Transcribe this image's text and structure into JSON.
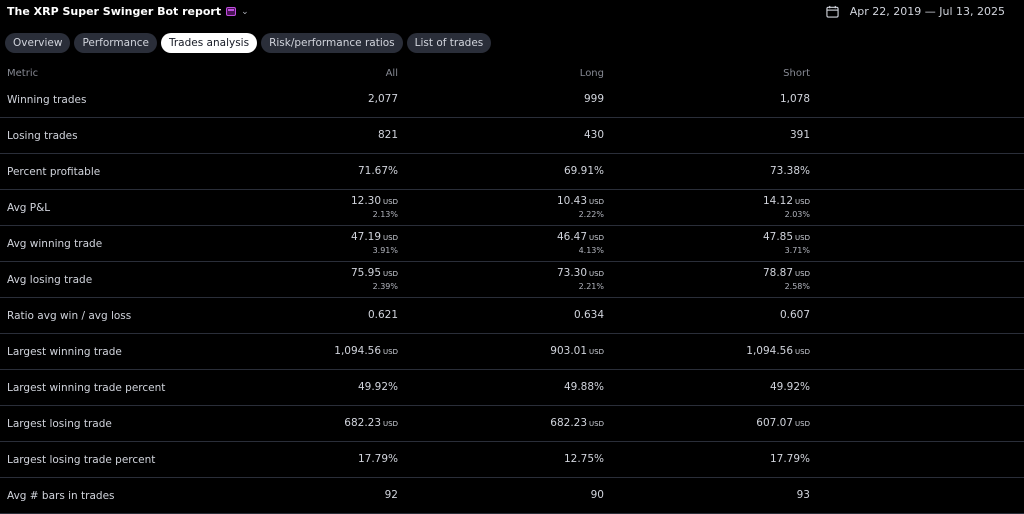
{
  "header": {
    "title": "The XRP Super Swinger Bot report",
    "date_range": "Apr 22, 2019 — Jul 13, 2025"
  },
  "tabs": [
    {
      "label": "Overview"
    },
    {
      "label": "Performance"
    },
    {
      "label": "Trades analysis",
      "active": true
    },
    {
      "label": "Risk/performance ratios"
    },
    {
      "label": "List of trades"
    }
  ],
  "table": {
    "columns": {
      "metric": "Metric",
      "all": "All",
      "long": "Long",
      "short": "Short"
    },
    "currency": "USD",
    "rows": [
      {
        "metric": "Winning trades",
        "all": "2,077",
        "long": "999",
        "short": "1,078"
      },
      {
        "metric": "Losing trades",
        "all": "821",
        "long": "430",
        "short": "391"
      },
      {
        "metric": "Percent profitable",
        "all": "71.67%",
        "long": "69.91%",
        "short": "73.38%"
      },
      {
        "metric": "Avg P&L",
        "all": "12.30",
        "all_cur": "USD",
        "all_sub": "2.13%",
        "long": "10.43",
        "long_cur": "USD",
        "long_sub": "2.22%",
        "short": "14.12",
        "short_cur": "USD",
        "short_sub": "2.03%"
      },
      {
        "metric": "Avg winning trade",
        "all": "47.19",
        "all_cur": "USD",
        "all_sub": "3.91%",
        "long": "46.47",
        "long_cur": "USD",
        "long_sub": "4.13%",
        "short": "47.85",
        "short_cur": "USD",
        "short_sub": "3.71%"
      },
      {
        "metric": "Avg losing trade",
        "all": "75.95",
        "all_cur": "USD",
        "all_sub": "2.39%",
        "long": "73.30",
        "long_cur": "USD",
        "long_sub": "2.21%",
        "short": "78.87",
        "short_cur": "USD",
        "short_sub": "2.58%"
      },
      {
        "metric": "Ratio avg win / avg loss",
        "all": "0.621",
        "long": "0.634",
        "short": "0.607"
      },
      {
        "metric": "Largest winning trade",
        "all": "1,094.56",
        "all_cur": "USD",
        "long": "903.01",
        "long_cur": "USD",
        "short": "1,094.56",
        "short_cur": "USD"
      },
      {
        "metric": "Largest winning trade percent",
        "all": "49.92%",
        "long": "49.88%",
        "short": "49.92%"
      },
      {
        "metric": "Largest losing trade",
        "all": "682.23",
        "all_cur": "USD",
        "long": "682.23",
        "long_cur": "USD",
        "short": "607.07",
        "short_cur": "USD"
      },
      {
        "metric": "Largest losing trade percent",
        "all": "17.79%",
        "long": "12.75%",
        "short": "17.79%"
      },
      {
        "metric": "Avg # bars in trades",
        "all": "92",
        "long": "90",
        "short": "93"
      }
    ]
  },
  "icons": {
    "calendar": "calendar-icon",
    "chevron": "chevron-down-icon",
    "report_badge": "report-badge-icon"
  }
}
